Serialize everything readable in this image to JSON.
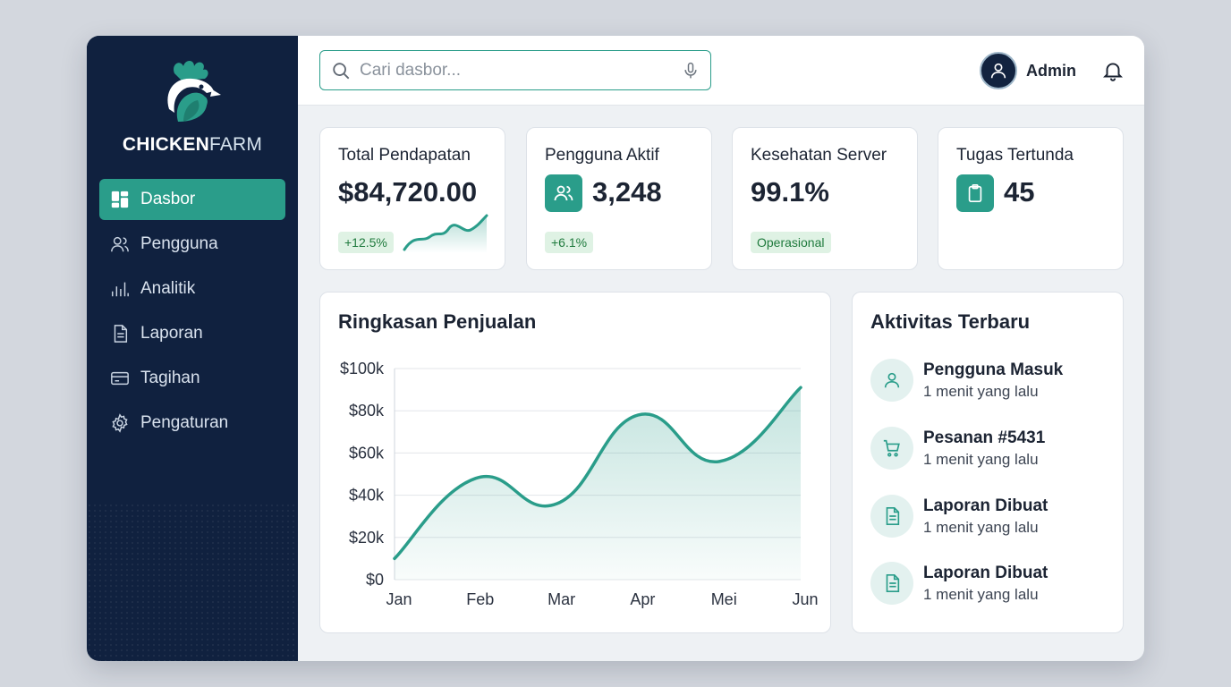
{
  "brand": {
    "name_bold": "CHICKEN",
    "name_light": "FARM"
  },
  "sidebar": {
    "items": [
      {
        "label": "Dasbor",
        "icon": "dashboard-icon",
        "active": true
      },
      {
        "label": "Pengguna",
        "icon": "users-icon"
      },
      {
        "label": "Analitik",
        "icon": "bar-chart-icon"
      },
      {
        "label": "Laporan",
        "icon": "document-icon"
      },
      {
        "label": "Tagihan",
        "icon": "credit-card-icon"
      },
      {
        "label": "Pengaturan",
        "icon": "gear-icon"
      }
    ]
  },
  "topbar": {
    "search_placeholder": "Cari dasbor...",
    "user_name": "Admin"
  },
  "stats": {
    "revenue": {
      "title": "Total Pendapatan",
      "value": "$84,720.00",
      "badge": "+12.5%"
    },
    "users": {
      "title": "Pengguna Aktif",
      "value": "3,248",
      "badge": "+6.1%"
    },
    "server": {
      "title": "Kesehatan Server",
      "value": "99.1%",
      "badge": "Operasional"
    },
    "tasks": {
      "title": "Tugas Tertunda",
      "value": "45"
    }
  },
  "sales": {
    "title": "Ringkasan Penjualan"
  },
  "chart_data": {
    "type": "area",
    "title": "Ringkasan Penjualan",
    "categories": [
      "Jan",
      "Feb",
      "Mar",
      "Apr",
      "Mei",
      "Jun"
    ],
    "values": [
      10000,
      48000,
      36000,
      78000,
      56000,
      91000
    ],
    "y_ticks": [
      "$0",
      "$20k",
      "$40k",
      "$60k",
      "$80k",
      "$100k"
    ],
    "ylim": [
      0,
      100000
    ],
    "grid": true,
    "color": "#2a9d8a"
  },
  "activity": {
    "title": "Aktivitas Terbaru",
    "items": [
      {
        "title": "Pengguna Masuk",
        "time": "1 menit yang lalu",
        "icon": "user-icon"
      },
      {
        "title": "Pesanan #5431",
        "time": "1 menit yang lalu",
        "icon": "cart-icon"
      },
      {
        "title": "Laporan Dibuat",
        "time": "1 menit yang lalu",
        "icon": "document-icon"
      },
      {
        "title": "Laporan Dibuat",
        "time": "1 menit yang lalu",
        "icon": "document-icon"
      }
    ]
  },
  "colors": {
    "accent": "#2a9d8a",
    "sidebar": "#10213f",
    "badge_bg": "#dff2e4"
  }
}
